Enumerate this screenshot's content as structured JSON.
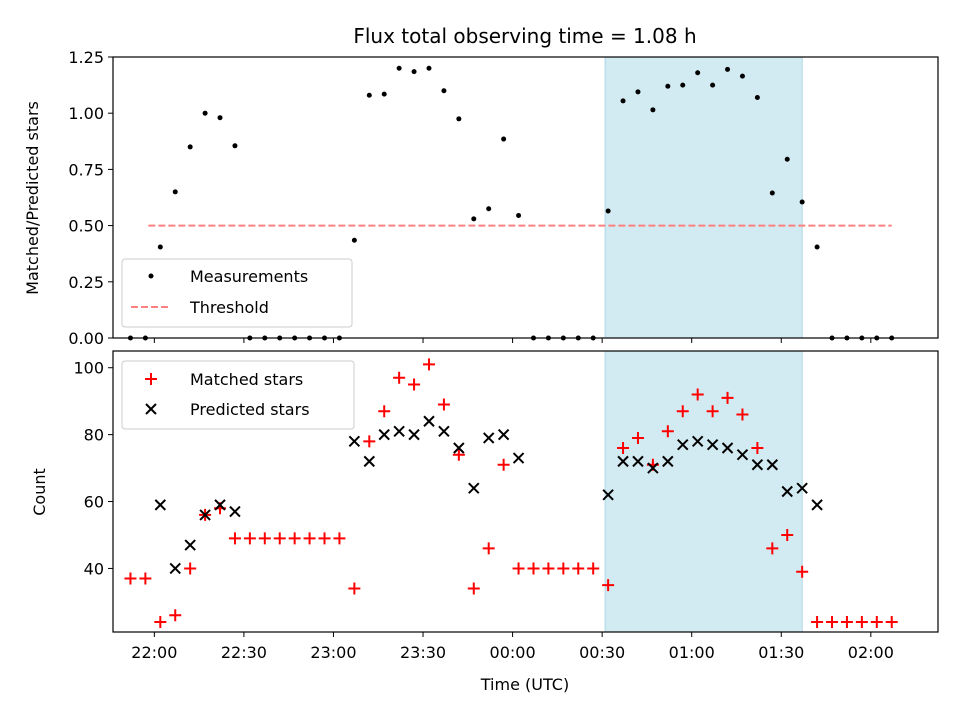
{
  "chart_data": [
    {
      "type": "scatter",
      "title": "Flux total observing time = 1.08 h",
      "xlabel": "",
      "ylabel": "Matched/Predicted stars",
      "ylim": [
        0,
        1.25
      ],
      "yticks": [
        "0.00",
        "0.25",
        "0.50",
        "0.75",
        "1.00",
        "1.25"
      ],
      "shaded_interval": [
        "00:31",
        "01:37"
      ],
      "legend": [
        "Measurements",
        "Threshold"
      ],
      "legend_position": "lower-left",
      "threshold": {
        "name": "Threshold",
        "value": 0.5,
        "x_range": [
          "21:58",
          "02:07"
        ],
        "color": "#ff8080"
      },
      "series": [
        {
          "name": "Measurements",
          "color": "#000000",
          "points": [
            [
              "21:52",
              0.0
            ],
            [
              "21:57",
              0.0
            ],
            [
              "22:02",
              0.405
            ],
            [
              "22:07",
              0.65
            ],
            [
              "22:12",
              0.85
            ],
            [
              "22:17",
              1.0
            ],
            [
              "22:22",
              0.98
            ],
            [
              "22:27",
              0.855
            ],
            [
              "22:32",
              0.0
            ],
            [
              "22:37",
              0.0
            ],
            [
              "22:42",
              0.0
            ],
            [
              "22:47",
              0.0
            ],
            [
              "22:52",
              0.0
            ],
            [
              "22:57",
              0.0
            ],
            [
              "23:02",
              0.0
            ],
            [
              "23:07",
              0.435
            ],
            [
              "23:12",
              1.08
            ],
            [
              "23:17",
              1.085
            ],
            [
              "23:22",
              1.2
            ],
            [
              "23:27",
              1.185
            ],
            [
              "23:32",
              1.2
            ],
            [
              "23:37",
              1.1
            ],
            [
              "23:42",
              0.975
            ],
            [
              "23:47",
              0.53
            ],
            [
              "23:52",
              0.575
            ],
            [
              "23:57",
              0.885
            ],
            [
              "00:02",
              0.545
            ],
            [
              "00:07",
              0.0
            ],
            [
              "00:12",
              0.0
            ],
            [
              "00:17",
              0.0
            ],
            [
              "00:22",
              0.0
            ],
            [
              "00:27",
              0.0
            ],
            [
              "00:32",
              0.565
            ],
            [
              "00:37",
              1.055
            ],
            [
              "00:42",
              1.095
            ],
            [
              "00:47",
              1.015
            ],
            [
              "00:52",
              1.12
            ],
            [
              "00:57",
              1.125
            ],
            [
              "01:02",
              1.18
            ],
            [
              "01:07",
              1.125
            ],
            [
              "01:12",
              1.195
            ],
            [
              "01:17",
              1.165
            ],
            [
              "01:22",
              1.07
            ],
            [
              "01:27",
              0.645
            ],
            [
              "01:32",
              0.795
            ],
            [
              "01:37",
              0.605
            ],
            [
              "01:42",
              0.405
            ],
            [
              "01:47",
              0.0
            ],
            [
              "01:52",
              0.0
            ],
            [
              "01:57",
              0.0
            ],
            [
              "02:02",
              0.0
            ],
            [
              "02:07",
              0.0
            ]
          ]
        }
      ]
    },
    {
      "type": "scatter",
      "title": "",
      "xlabel": "Time (UTC)",
      "ylabel": "Count",
      "ylim": [
        21,
        105
      ],
      "yticks": [
        "40",
        "60",
        "80",
        "100"
      ],
      "xticks": [
        "22:00",
        "22:30",
        "23:00",
        "23:30",
        "00:00",
        "00:30",
        "01:00",
        "01:30",
        "02:00"
      ],
      "shaded_interval": [
        "00:31",
        "01:37"
      ],
      "legend": [
        "Matched stars",
        "Predicted stars"
      ],
      "legend_position": "upper-left",
      "series": [
        {
          "name": "Matched stars",
          "marker": "+",
          "color": "#ff0000",
          "points": [
            [
              "21:52",
              37
            ],
            [
              "21:57",
              37
            ],
            [
              "22:02",
              24
            ],
            [
              "22:07",
              26
            ],
            [
              "22:12",
              40
            ],
            [
              "22:17",
              56
            ],
            [
              "22:22",
              58
            ],
            [
              "22:27",
              49
            ],
            [
              "22:32",
              49
            ],
            [
              "22:37",
              49
            ],
            [
              "22:42",
              49
            ],
            [
              "22:47",
              49
            ],
            [
              "22:52",
              49
            ],
            [
              "22:57",
              49
            ],
            [
              "23:02",
              49
            ],
            [
              "23:07",
              34
            ],
            [
              "23:12",
              78
            ],
            [
              "23:17",
              87
            ],
            [
              "23:22",
              97
            ],
            [
              "23:27",
              95
            ],
            [
              "23:32",
              101
            ],
            [
              "23:37",
              89
            ],
            [
              "23:42",
              74
            ],
            [
              "23:47",
              34
            ],
            [
              "23:52",
              46
            ],
            [
              "23:57",
              71
            ],
            [
              "00:02",
              40
            ],
            [
              "00:07",
              40
            ],
            [
              "00:12",
              40
            ],
            [
              "00:17",
              40
            ],
            [
              "00:22",
              40
            ],
            [
              "00:27",
              40
            ],
            [
              "00:32",
              35
            ],
            [
              "00:37",
              76
            ],
            [
              "00:42",
              79
            ],
            [
              "00:47",
              71
            ],
            [
              "00:52",
              81
            ],
            [
              "00:57",
              87
            ],
            [
              "01:02",
              92
            ],
            [
              "01:07",
              87
            ],
            [
              "01:12",
              91
            ],
            [
              "01:17",
              86
            ],
            [
              "01:22",
              76
            ],
            [
              "01:27",
              46
            ],
            [
              "01:32",
              50
            ],
            [
              "01:37",
              39
            ],
            [
              "01:42",
              24
            ],
            [
              "01:47",
              24
            ],
            [
              "01:52",
              24
            ],
            [
              "01:57",
              24
            ],
            [
              "02:02",
              24
            ],
            [
              "02:07",
              24
            ]
          ]
        },
        {
          "name": "Predicted stars",
          "marker": "x",
          "color": "#000000",
          "points": [
            [
              "22:02",
              59
            ],
            [
              "22:07",
              40
            ],
            [
              "22:12",
              47
            ],
            [
              "22:17",
              56
            ],
            [
              "22:22",
              59
            ],
            [
              "22:27",
              57
            ],
            [
              "23:07",
              78
            ],
            [
              "23:12",
              72
            ],
            [
              "23:17",
              80
            ],
            [
              "23:22",
              81
            ],
            [
              "23:27",
              80
            ],
            [
              "23:32",
              84
            ],
            [
              "23:37",
              81
            ],
            [
              "23:42",
              76
            ],
            [
              "23:47",
              64
            ],
            [
              "23:52",
              79
            ],
            [
              "23:57",
              80
            ],
            [
              "00:02",
              73
            ],
            [
              "00:32",
              62
            ],
            [
              "00:37",
              72
            ],
            [
              "00:42",
              72
            ],
            [
              "00:47",
              70
            ],
            [
              "00:52",
              72
            ],
            [
              "00:57",
              77
            ],
            [
              "01:02",
              78
            ],
            [
              "01:07",
              77
            ],
            [
              "01:12",
              76
            ],
            [
              "01:17",
              74
            ],
            [
              "01:22",
              71
            ],
            [
              "01:27",
              71
            ],
            [
              "01:32",
              63
            ],
            [
              "01:37",
              64
            ],
            [
              "01:42",
              59
            ]
          ]
        }
      ]
    }
  ],
  "colors": {
    "shade": "#add8e6",
    "matched": "#ff0000",
    "predicted": "#000000",
    "measurement": "#000000",
    "threshold": "#ff8080"
  }
}
